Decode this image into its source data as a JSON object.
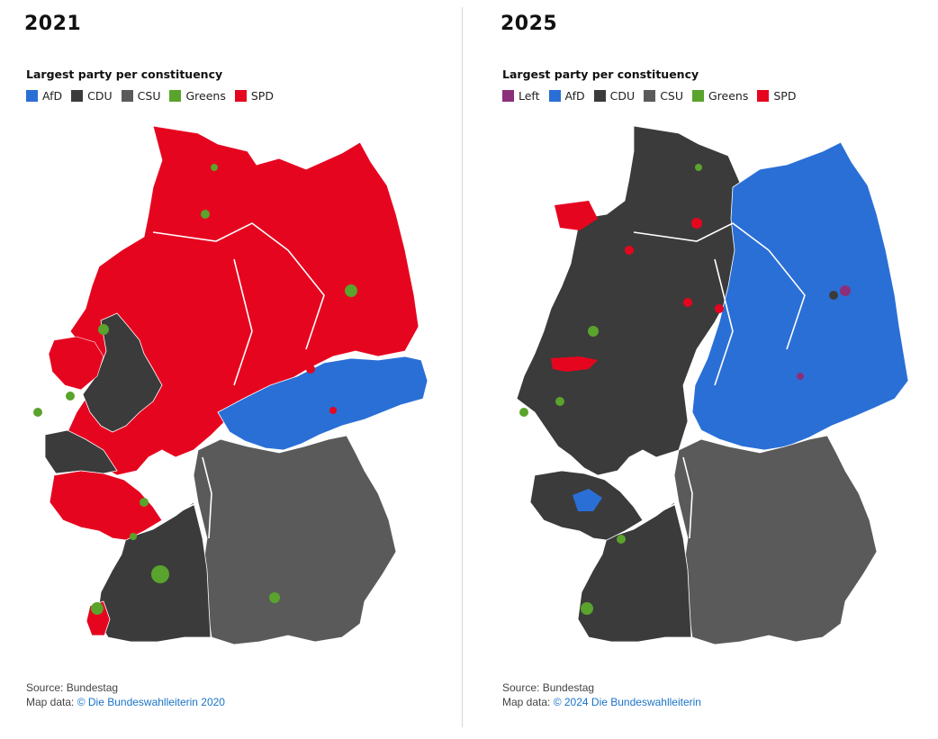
{
  "left": {
    "year": "2021",
    "legend_title": "Largest party per constituency",
    "legend": [
      {
        "label": "AfD",
        "color": "#2a6fd6"
      },
      {
        "label": "CDU",
        "color": "#3b3b3b"
      },
      {
        "label": "CSU",
        "color": "#5a5a5a"
      },
      {
        "label": "Greens",
        "color": "#5aa32c"
      },
      {
        "label": "SPD",
        "color": "#e6051f"
      }
    ],
    "source": "Source: Bundestag",
    "mapdata_prefix": "Map data: ",
    "mapdata_link": "© Die Bundeswahlleiterin 2020"
  },
  "right": {
    "year": "2025",
    "legend_title": "Largest party per constituency",
    "legend": [
      {
        "label": "Left",
        "color": "#8b2f7a"
      },
      {
        "label": "AfD",
        "color": "#2a6fd6"
      },
      {
        "label": "CDU",
        "color": "#3b3b3b"
      },
      {
        "label": "CSU",
        "color": "#5a5a5a"
      },
      {
        "label": "Greens",
        "color": "#5aa32c"
      },
      {
        "label": "SPD",
        "color": "#e6051f"
      }
    ],
    "source": "Source: Bundestag",
    "mapdata_prefix": "Map data: ",
    "mapdata_link": "© 2024 Die Bundeswahlleiterin"
  }
}
